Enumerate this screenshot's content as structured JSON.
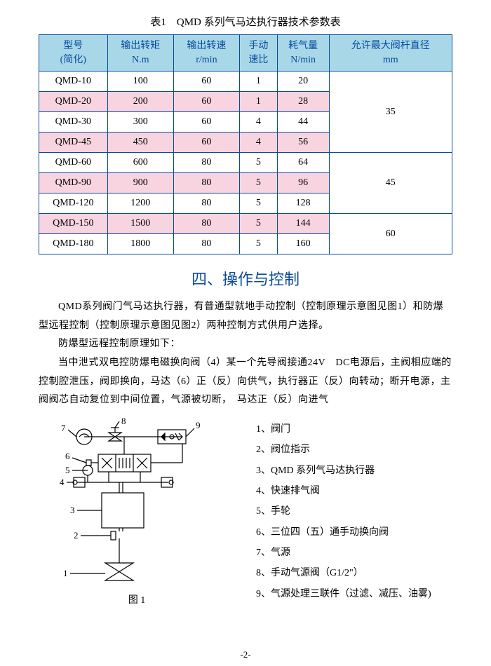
{
  "tableTitle": "表1　QMD 系列气马达执行器技术参数表",
  "headers": [
    "型号\n(简化)",
    "输出转矩\nN.m",
    "输出转速\nr/min",
    "手动\n速比",
    "耗气量\nN/min",
    "允许最大阀杆直径\nmm"
  ],
  "rows": [
    {
      "cells": [
        "QMD-10",
        "100",
        "60",
        "1",
        "20"
      ],
      "pink": false
    },
    {
      "cells": [
        "QMD-20",
        "200",
        "60",
        "1",
        "28"
      ],
      "pink": true
    },
    {
      "cells": [
        "QMD-30",
        "300",
        "60",
        "4",
        "44"
      ],
      "pink": false
    },
    {
      "cells": [
        "QMD-45",
        "450",
        "60",
        "4",
        "56"
      ],
      "pink": true
    },
    {
      "cells": [
        "QMD-60",
        "600",
        "80",
        "5",
        "64"
      ],
      "pink": false
    },
    {
      "cells": [
        "QMD-90",
        "900",
        "80",
        "5",
        "96"
      ],
      "pink": true
    },
    {
      "cells": [
        "QMD-120",
        "1200",
        "80",
        "5",
        "128"
      ],
      "pink": false
    },
    {
      "cells": [
        "QMD-150",
        "1500",
        "80",
        "5",
        "144"
      ],
      "pink": true
    },
    {
      "cells": [
        "QMD-180",
        "1800",
        "80",
        "5",
        "160"
      ],
      "pink": false
    }
  ],
  "mergedCol": [
    {
      "start": 0,
      "span": 4,
      "value": "35"
    },
    {
      "start": 4,
      "span": 3,
      "value": "45"
    },
    {
      "start": 7,
      "span": 2,
      "value": "60"
    }
  ],
  "sectionTitle": "四、操作与控制",
  "paragraphs": [
    "QMD系列阀门气马达执行器，有普通型就地手动控制（控制原理示意图见图1）和防爆型远程控制（控制原理示意图见图2）两种控制方式供用户选择。",
    "防爆型远程控制原理如下：",
    "当中泄式双电控防爆电磁换向阀（4）某一个先导阀接通24V　DC电源后，主阀相应端的控制腔泄压，阀即换向，马达（6）正（反）向供气，执行器正（反）向转动；断开电源，主阀阀芯自动复位到中间位置，气源被切断，　马达正（反）向进气"
  ],
  "figCaption": "图 1",
  "legend": [
    "1、阀门",
    "2、阀位指示",
    "3、QMD 系列气马达执行器",
    "4、快速排气阀",
    "5、手轮",
    "6、三位四（五）通手动换向阀",
    "7、气源",
    "8、手动气源阀（G1/2\"）",
    "9、气源处理三联件（过滤、减压、油雾)"
  ],
  "pageNum": "-2-",
  "colors": {
    "border": "#0a4a9e",
    "headerBg": "#a8d8e8",
    "headerText": "#0a4a9e",
    "pinkBg": "#f7d4e0",
    "sectionTitle": "#0a4a9e"
  }
}
